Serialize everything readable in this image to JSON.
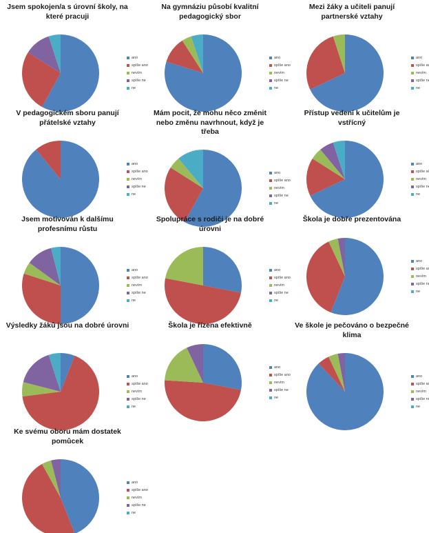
{
  "legend": [
    "ano",
    "spíše ano",
    "nevím",
    "spíše ne",
    "ne"
  ],
  "colors": [
    "#4f81bd",
    "#c0504d",
    "#9bbb59",
    "#8064a2",
    "#4bacc6"
  ],
  "chart_data": [
    {
      "type": "pie",
      "title": "Jsem spokojen/a s úrovní školy, na které pracuji",
      "categories": [
        "ano",
        "spíše ano",
        "nevím",
        "spíše ne",
        "ne"
      ],
      "values": [
        58,
        26,
        0,
        11,
        5
      ]
    },
    {
      "type": "pie",
      "title": "Na gymnáziu působí kvalitní pedagogický sbor",
      "categories": [
        "ano",
        "spíše ano",
        "nevím",
        "spíše ne",
        "ne"
      ],
      "values": [
        79,
        11,
        4,
        0,
        5
      ]
    },
    {
      "type": "pie",
      "title": "Mezi žáky a učiteli panují partnerské vztahy",
      "categories": [
        "ano",
        "spíše ano",
        "nevím",
        "spíše ne",
        "ne"
      ],
      "values": [
        68,
        27,
        5,
        0,
        0
      ]
    },
    {
      "type": "pie",
      "title": "V pedagogickém sboru panují přátelské vztahy",
      "categories": [
        "ano",
        "spíše ano",
        "nevím",
        "spíše ne",
        "ne"
      ],
      "values": [
        89,
        11,
        0,
        0,
        0
      ]
    },
    {
      "type": "pie",
      "title": "Mám pocit, že mohu něco změnit nebo změnu navrhnout, když je třeba",
      "categories": [
        "ano",
        "spíše ano",
        "nevím",
        "spíše ne",
        "ne"
      ],
      "values": [
        58,
        26,
        5,
        0,
        11
      ]
    },
    {
      "type": "pie",
      "title": "Přístup vedení k učitelům je vstřícný",
      "categories": [
        "ano",
        "spíše ano",
        "nevím",
        "spíše ne",
        "ne"
      ],
      "values": [
        68,
        16,
        5,
        6,
        5
      ]
    },
    {
      "type": "pie",
      "title": "Jsem motivován k dalšímu profesnímu růstu",
      "categories": [
        "ano",
        "spíše ano",
        "nevím",
        "spíše ne",
        "ne"
      ],
      "values": [
        50,
        30,
        5,
        11,
        4
      ]
    },
    {
      "type": "pie",
      "title": "Spolupráce s rodiči je na dobré úrovni",
      "categories": [
        "ano",
        "spíše ano",
        "nevím",
        "spíše ne",
        "ne"
      ],
      "values": [
        28,
        50,
        22,
        0,
        0
      ]
    },
    {
      "type": "pie",
      "title": "Škola je dobře prezentována",
      "categories": [
        "ano",
        "spíše ano",
        "nevím",
        "spíše ne",
        "ne"
      ],
      "values": [
        56,
        37,
        4,
        3,
        0
      ]
    },
    {
      "type": "pie",
      "title": "Výsledky žáků jsou na dobré úrovni",
      "categories": [
        "ano",
        "spíše ano",
        "nevím",
        "spíše ne",
        "ne"
      ],
      "values": [
        6,
        67,
        6,
        16,
        5
      ]
    },
    {
      "type": "pie",
      "title": "Škola je řízena efektivně",
      "categories": [
        "ano",
        "spíše ano",
        "nevím",
        "spíše ne",
        "ne"
      ],
      "values": [
        28,
        48,
        17,
        7,
        0
      ]
    },
    {
      "type": "pie",
      "title": "Ve škole je pečováno o bezpečné klima",
      "categories": [
        "ano",
        "spíše ano",
        "nevím",
        "spíše ne",
        "ne"
      ],
      "values": [
        88,
        5,
        4,
        3,
        0
      ]
    },
    {
      "type": "pie",
      "title": "Ke svému oboru mám dostatek pomůcek",
      "categories": [
        "ano",
        "spíše ano",
        "nevím",
        "spíše ne",
        "ne"
      ],
      "values": [
        44,
        48,
        4,
        4,
        0
      ]
    }
  ]
}
